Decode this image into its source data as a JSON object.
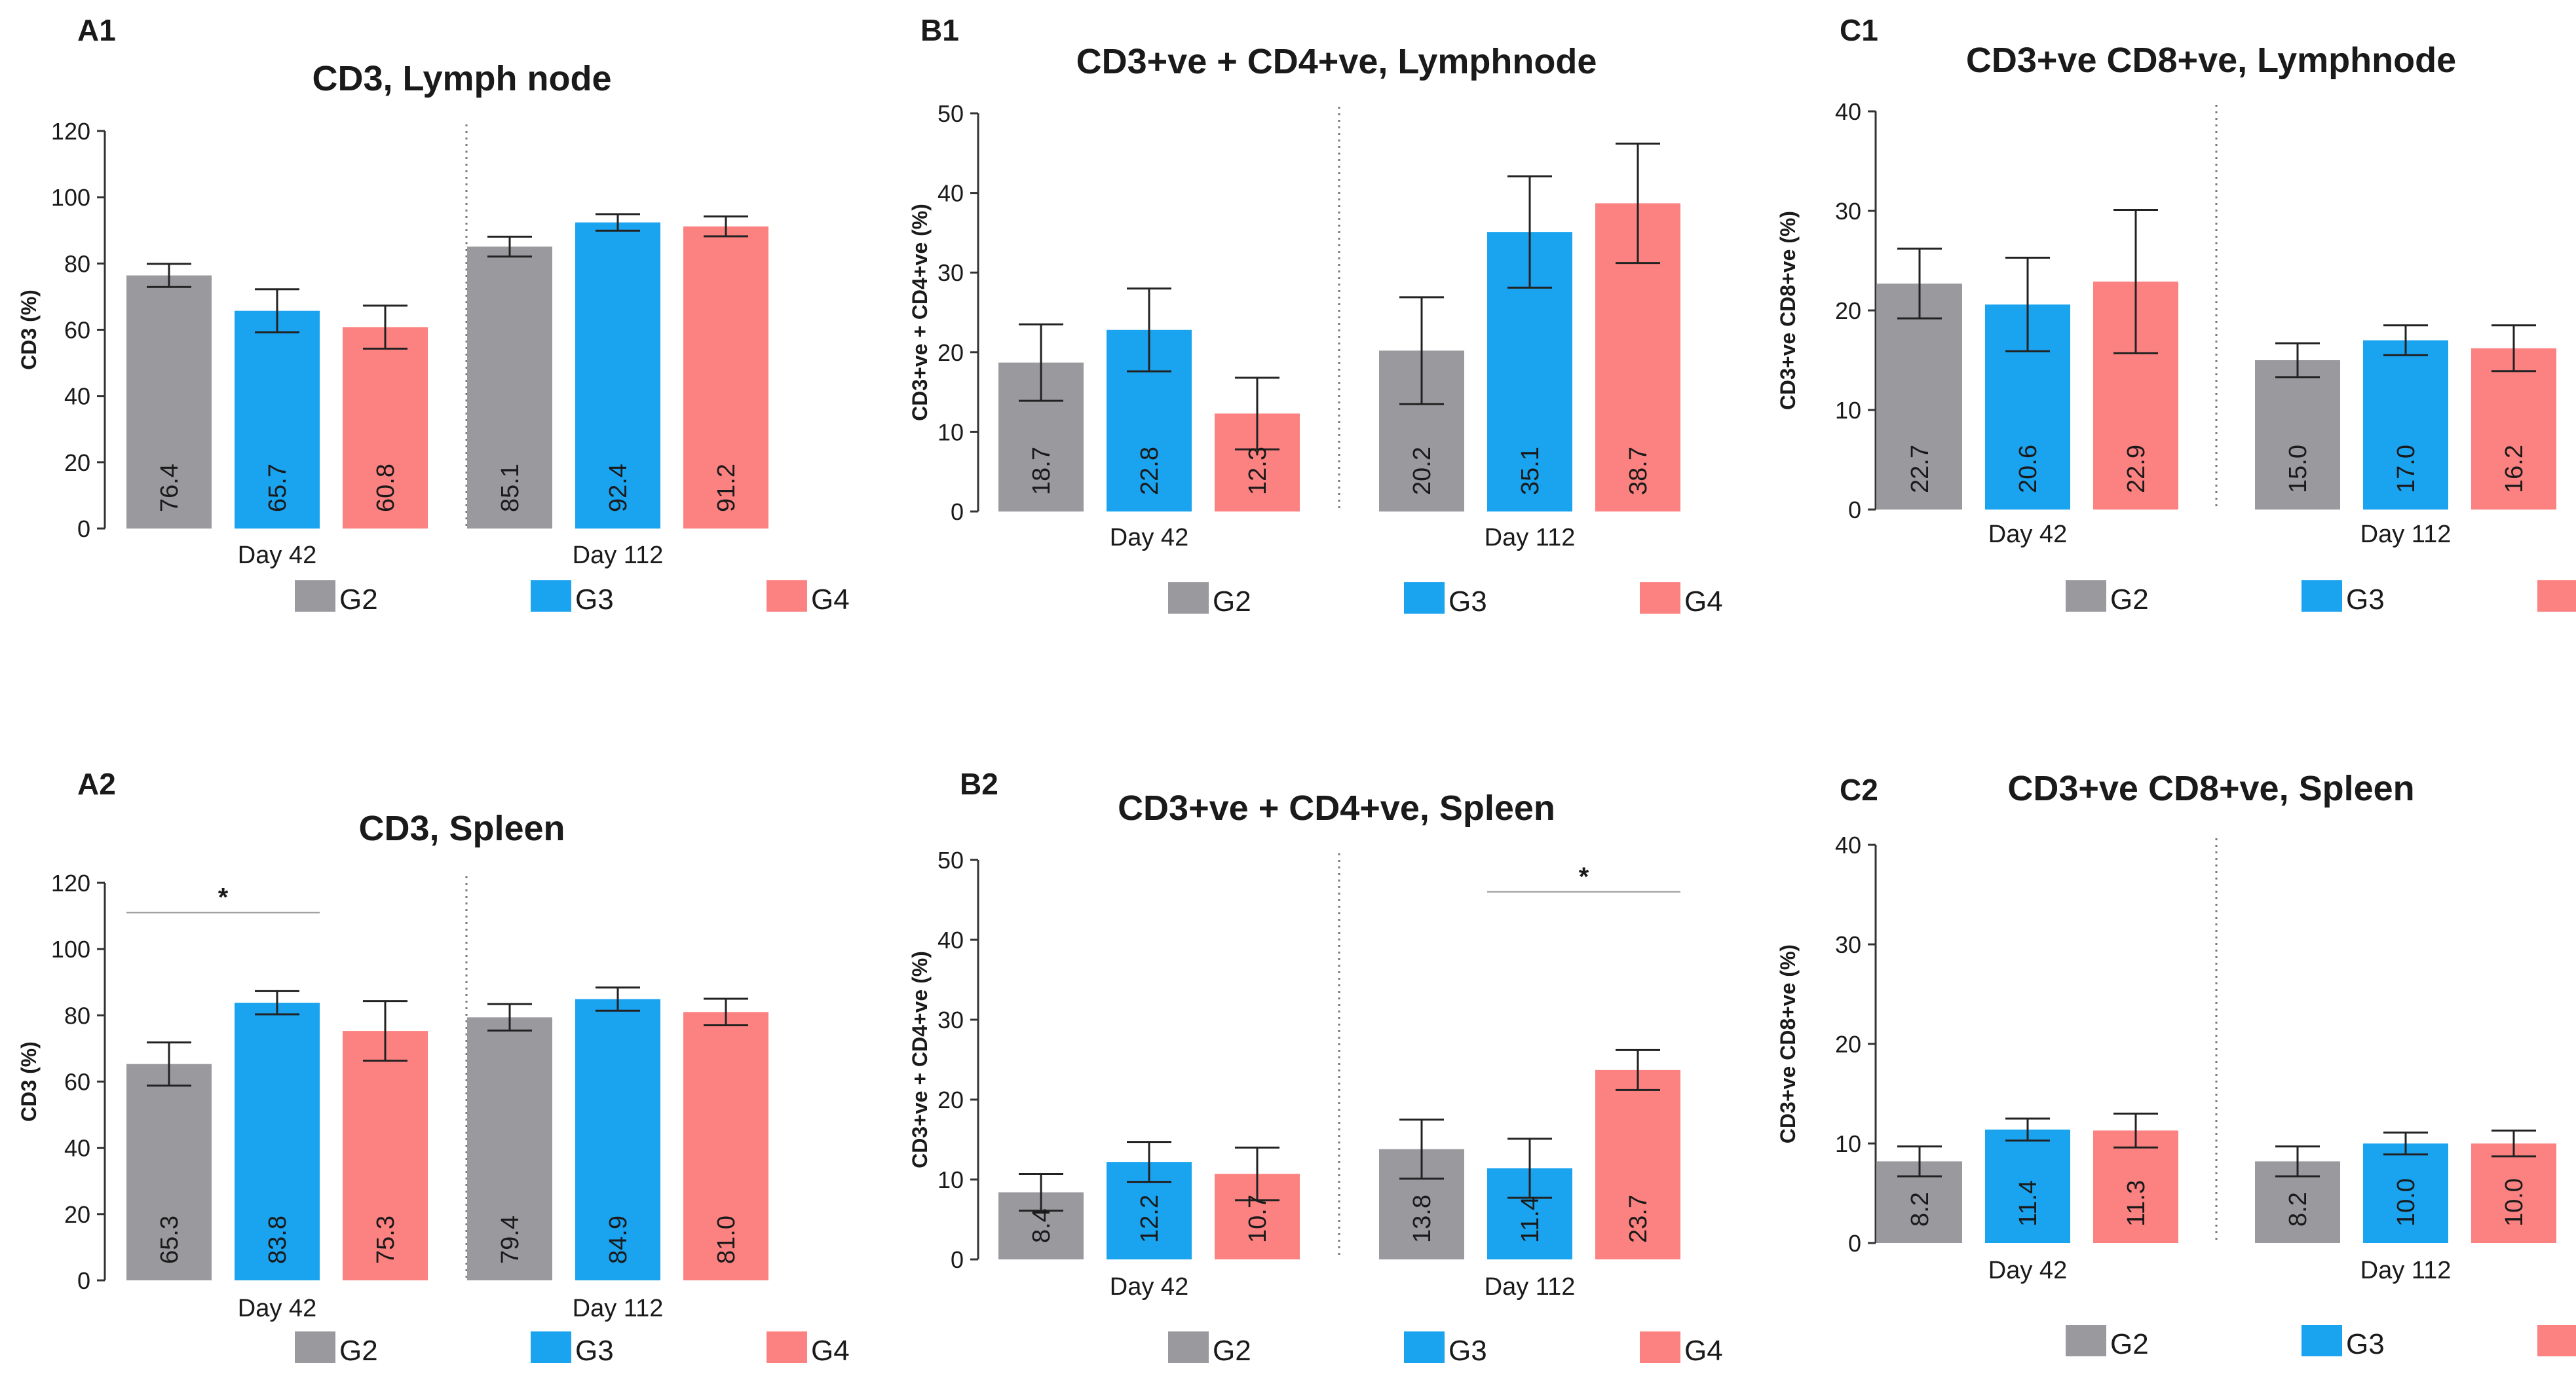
{
  "legend": [
    "G2",
    "G3",
    "G4"
  ],
  "colors": {
    "G2": "#9a999e",
    "G3": "#1aa3ef",
    "G4": "#fc8282"
  },
  "chart_data": [
    {
      "id": "A1",
      "title": "CD3, Lymph node",
      "type": "bar",
      "ylabel": "CD3 (%)",
      "ylim": [
        0,
        120
      ],
      "yticks": [
        0,
        20,
        40,
        60,
        80,
        100,
        120
      ],
      "groups": [
        "Day 42",
        "Day 112"
      ],
      "series": [
        {
          "name": "G2",
          "values": [
            76.4,
            85.1
          ],
          "labels": [
            "76.4",
            "85.1"
          ],
          "err": [
            3.5,
            3
          ]
        },
        {
          "name": "G3",
          "values": [
            65.7,
            92.4
          ],
          "labels": [
            "65.7",
            "92.4"
          ],
          "err": [
            6.5,
            2.5
          ]
        },
        {
          "name": "G4",
          "values": [
            60.8,
            91.2
          ],
          "labels": [
            "60.8",
            "91.2"
          ],
          "err": [
            6.5,
            3
          ]
        }
      ],
      "annotations": []
    },
    {
      "id": "B1",
      "title": "CD3+ve + CD4+ve, Lymphnode",
      "type": "bar",
      "ylabel": "CD3+ve + CD4+ve (%)",
      "ylim": [
        0,
        50
      ],
      "yticks": [
        0,
        10,
        20,
        30,
        40,
        50
      ],
      "groups": [
        "Day 42",
        "Day 112"
      ],
      "series": [
        {
          "name": "G2",
          "values": [
            18.7,
            20.2
          ],
          "labels": [
            "18.7",
            "20.2"
          ],
          "err": [
            4.8,
            6.7
          ]
        },
        {
          "name": "G3",
          "values": [
            22.8,
            35.1
          ],
          "labels": [
            "22.8",
            "35.1"
          ],
          "err": [
            5.2,
            7
          ]
        },
        {
          "name": "G4",
          "values": [
            12.3,
            38.7
          ],
          "labels": [
            "12.3",
            "38.7"
          ],
          "err": [
            4.5,
            7.5
          ]
        }
      ],
      "annotations": []
    },
    {
      "id": "C1",
      "title": "CD3+ve CD8+ve, Lymphnode",
      "type": "bar",
      "ylabel": "CD3+ve CD8+ve (%)",
      "ylim": [
        0,
        40
      ],
      "yticks": [
        0,
        10,
        20,
        30,
        40
      ],
      "groups": [
        "Day 42",
        "Day 112"
      ],
      "series": [
        {
          "name": "G2",
          "values": [
            22.7,
            15.0
          ],
          "labels": [
            "22.7",
            "15.0"
          ],
          "err": [
            3.5,
            1.7
          ]
        },
        {
          "name": "G3",
          "values": [
            20.6,
            17.0
          ],
          "labels": [
            "20.6",
            "17.0"
          ],
          "err": [
            4.7,
            1.5
          ]
        },
        {
          "name": "G4",
          "values": [
            22.9,
            16.2
          ],
          "labels": [
            "22.9",
            "16.2"
          ],
          "err": [
            7.2,
            2.3
          ]
        }
      ],
      "annotations": []
    },
    {
      "id": "A2",
      "title": "CD3, Spleen",
      "type": "bar",
      "ylabel": "CD3 (%)",
      "ylim": [
        0,
        120
      ],
      "yticks": [
        0,
        20,
        40,
        60,
        80,
        100,
        120
      ],
      "groups": [
        "Day 42",
        "Day 112"
      ],
      "series": [
        {
          "name": "G2",
          "values": [
            65.3,
            79.4
          ],
          "labels": [
            "65.3",
            "79.4"
          ],
          "err": [
            6.5,
            4
          ]
        },
        {
          "name": "G3",
          "values": [
            83.8,
            84.9
          ],
          "labels": [
            "83.8",
            "84.9"
          ],
          "err": [
            3.5,
            3.5
          ]
        },
        {
          "name": "G4",
          "values": [
            75.3,
            81.0
          ],
          "labels": [
            "75.3",
            "81.0"
          ],
          "err": [
            9,
            4
          ]
        }
      ],
      "annotations": [
        {
          "text": "*",
          "group": 0,
          "from_series": 0,
          "to_series": 1,
          "y": 111
        }
      ]
    },
    {
      "id": "B2",
      "title": "CD3+ve + CD4+ve, Spleen",
      "type": "bar",
      "ylabel": "CD3+ve + CD4+ve (%)",
      "ylim": [
        0,
        50
      ],
      "yticks": [
        0,
        10,
        20,
        30,
        40,
        50
      ],
      "groups": [
        "Day 42",
        "Day 112"
      ],
      "series": [
        {
          "name": "G2",
          "values": [
            8.4,
            13.8
          ],
          "labels": [
            "8.4",
            "13.8"
          ],
          "err": [
            2.3,
            3.7
          ]
        },
        {
          "name": "G3",
          "values": [
            12.2,
            11.4
          ],
          "labels": [
            "12.2",
            "11.4"
          ],
          "err": [
            2.5,
            3.7
          ]
        },
        {
          "name": "G4",
          "values": [
            10.7,
            23.7
          ],
          "labels": [
            "10.7",
            "23.7"
          ],
          "err": [
            3.3,
            2.5
          ]
        }
      ],
      "annotations": [
        {
          "text": "*",
          "group": 1,
          "from_series": 1,
          "to_series": 2,
          "y": 46
        }
      ]
    },
    {
      "id": "C2",
      "title": "CD3+ve CD8+ve, Spleen",
      "type": "bar",
      "ylabel": "CD3+ve CD8+ve (%)",
      "ylim": [
        0,
        40
      ],
      "yticks": [
        0,
        10,
        20,
        30,
        40
      ],
      "groups": [
        "Day 42",
        "Day 112"
      ],
      "series": [
        {
          "name": "G2",
          "values": [
            8.2,
            8.2
          ],
          "labels": [
            "8.2",
            "8.2"
          ],
          "err": [
            1.5,
            1.5
          ]
        },
        {
          "name": "G3",
          "values": [
            11.4,
            10.0
          ],
          "labels": [
            "11.4",
            "10.0"
          ],
          "err": [
            1.1,
            1.1
          ]
        },
        {
          "name": "G4",
          "values": [
            11.3,
            10.0
          ],
          "labels": [
            "11.3",
            "10.0"
          ],
          "err": [
            1.7,
            1.3
          ]
        }
      ],
      "annotations": []
    }
  ]
}
